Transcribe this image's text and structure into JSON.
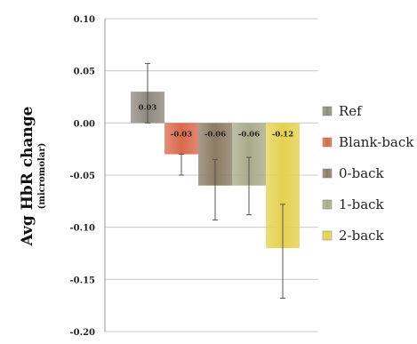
{
  "chart_data": {
    "type": "bar",
    "ylabel": "Avg HbR change",
    "ylabel_sub": "(micromolar)",
    "ylim": [
      -0.2,
      0.1
    ],
    "yticks": [
      0.1,
      0.05,
      0.0,
      -0.05,
      -0.1,
      -0.15,
      -0.2
    ],
    "ytick_labels": [
      "0.10",
      "0.05",
      "0.00",
      "-0.05",
      "-0.10",
      "-0.15",
      "-0.20"
    ],
    "grid": true,
    "legend_position": "right",
    "series": [
      {
        "name": "Ref",
        "value": 0.03,
        "label": "0.03",
        "err_low": 0.0,
        "err_high": 0.057,
        "color": "#8f8a80"
      },
      {
        "name": "Blank-back",
        "value": -0.03,
        "label": "-0.03",
        "err_low": -0.05,
        "err_high": -0.03,
        "color": "#d9694d"
      },
      {
        "name": "0-back",
        "value": -0.06,
        "label": "-0.06",
        "err_low": -0.093,
        "err_high": -0.035,
        "color": "#8c7b64"
      },
      {
        "name": "1-back",
        "value": -0.06,
        "label": "-0.06",
        "err_low": -0.088,
        "err_high": -0.033,
        "color": "#a8ab8a"
      },
      {
        "name": "2-back",
        "value": -0.12,
        "label": "-0.12",
        "err_low": -0.168,
        "err_high": -0.078,
        "color": "#e5d14f"
      }
    ]
  }
}
